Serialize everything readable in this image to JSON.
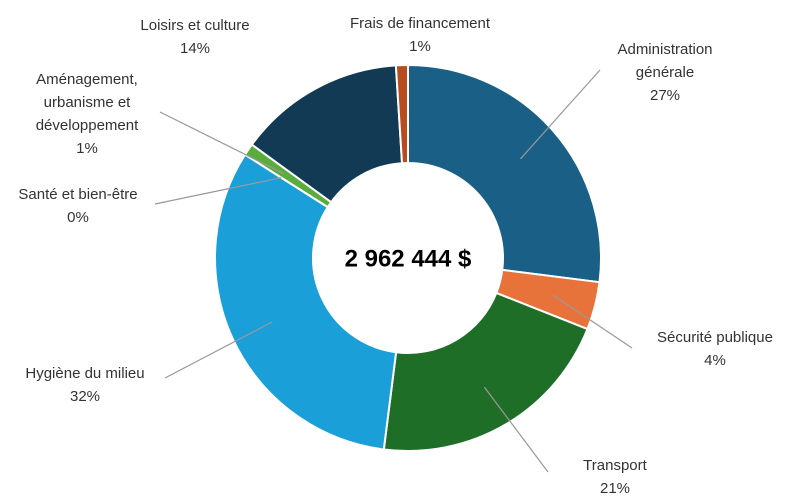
{
  "chart_data": {
    "type": "donut",
    "center_label": "2 962 444 $",
    "categories": [
      "Administration générale",
      "Sécurité publique",
      "Transport",
      "Hygiène du milieu",
      "Santé et bien-être",
      "Aménagement, urbanisme et développement",
      "Loisirs et culture",
      "Frais de financement"
    ],
    "values": [
      27,
      4,
      21,
      32,
      0,
      1,
      14,
      1
    ],
    "value_labels": [
      "27%",
      "4%",
      "21%",
      "32%",
      "0%",
      "1%",
      "14%",
      "1%"
    ],
    "colors": [
      "#1a5f85",
      "#e8733a",
      "#1f6e28",
      "#1a9fd9",
      "#a0a0a0",
      "#5aad3c",
      "#123a55",
      "#b84c1e"
    ]
  }
}
